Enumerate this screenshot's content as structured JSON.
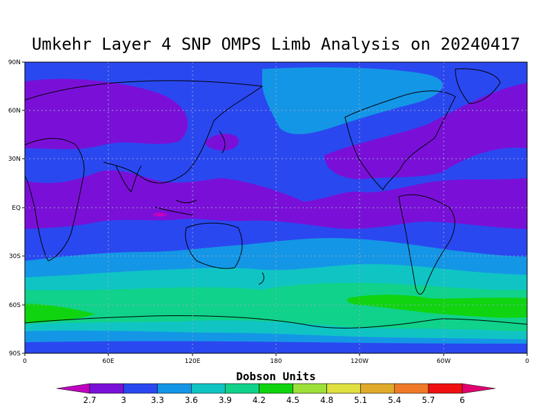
{
  "title": "Umkehr Layer 4 SNP OMPS Limb Analysis on 20240417",
  "lat_ticks": [
    "90N",
    "60N",
    "30N",
    "EQ",
    "30S",
    "60S",
    "90S"
  ],
  "lon_ticks": [
    "0",
    "60E",
    "120E",
    "180",
    "120W",
    "60W",
    "0"
  ],
  "colorbar": {
    "title": "Dobson Units",
    "labels": [
      "2.7",
      "3",
      "3.3",
      "3.6",
      "3.9",
      "4.2",
      "4.5",
      "4.8",
      "5.1",
      "5.4",
      "5.7",
      "6"
    ],
    "colors": [
      "#c000c0",
      "#7a10d8",
      "#2a48f0",
      "#1496e6",
      "#10c4c4",
      "#10d28a",
      "#10d410",
      "#9ee03a",
      "#e0e040",
      "#e0aa2a",
      "#f07a28",
      "#f01010",
      "#e00070"
    ]
  },
  "map_data": {
    "projection": "equirectangular",
    "lon_range": [
      0,
      360
    ],
    "lat_range": [
      -90,
      90
    ],
    "field": "ozone Dobson Units"
  }
}
